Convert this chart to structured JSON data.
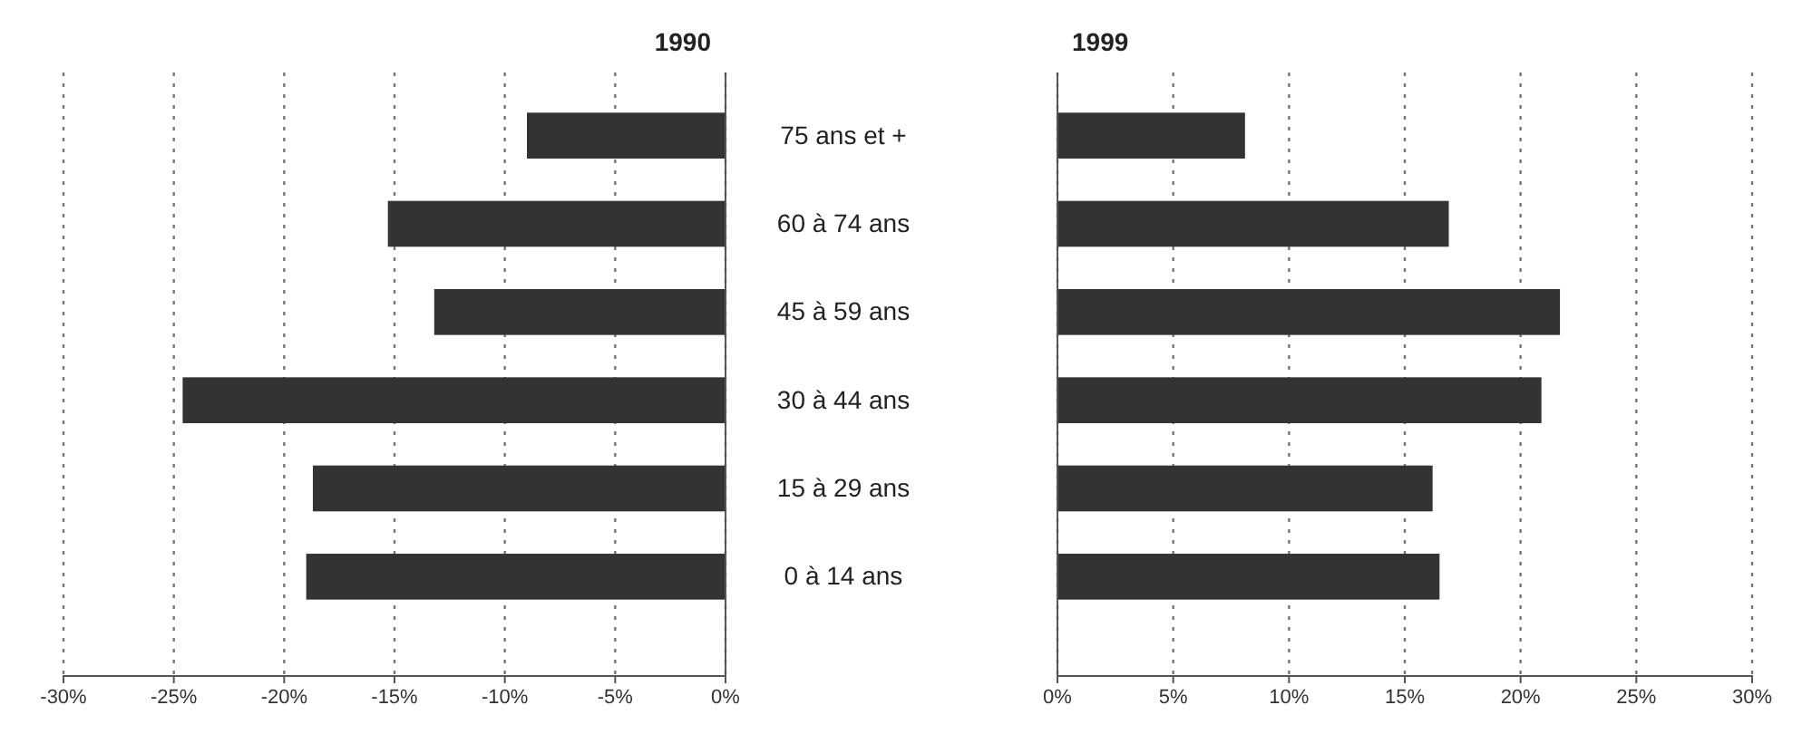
{
  "chart_data": [
    {
      "type": "bar",
      "title": "1990",
      "orientation": "horizontal",
      "categories": [
        "75 ans et +",
        "60 à 74 ans",
        "45 à 59 ans",
        "30 à 44 ans",
        "15 à 29 ans",
        "0 à 14 ans"
      ],
      "values": [
        -9.0,
        -15.3,
        -13.2,
        -24.6,
        -18.7,
        -19.0
      ],
      "color": "#333333",
      "xlim": [
        -30,
        0
      ],
      "xticks": [
        {
          "value": -30,
          "label": "-30%"
        },
        {
          "value": -25,
          "label": "-25%"
        },
        {
          "value": -20,
          "label": "-20%"
        },
        {
          "value": -15,
          "label": "-15%"
        },
        {
          "value": -10,
          "label": "-10%"
        },
        {
          "value": -5,
          "label": "-5%"
        },
        {
          "value": 0,
          "label": "0%"
        }
      ],
      "grid": "x"
    },
    {
      "type": "bar",
      "title": "1999",
      "orientation": "horizontal",
      "categories": [
        null,
        null,
        null,
        null,
        null,
        null
      ],
      "values": [
        8.1,
        16.9,
        21.7,
        20.9,
        16.2,
        16.5
      ],
      "color": "#333333",
      "xlim": [
        0,
        30
      ],
      "xticks": [
        {
          "value": 0,
          "label": "0%"
        },
        {
          "value": 5,
          "label": "5%"
        },
        {
          "value": 10,
          "label": "10%"
        },
        {
          "value": 15,
          "label": "15%"
        },
        {
          "value": 20,
          "label": "20%"
        },
        {
          "value": 25,
          "label": "25%"
        },
        {
          "value": 30,
          "label": "30%"
        }
      ],
      "grid": "x"
    }
  ]
}
